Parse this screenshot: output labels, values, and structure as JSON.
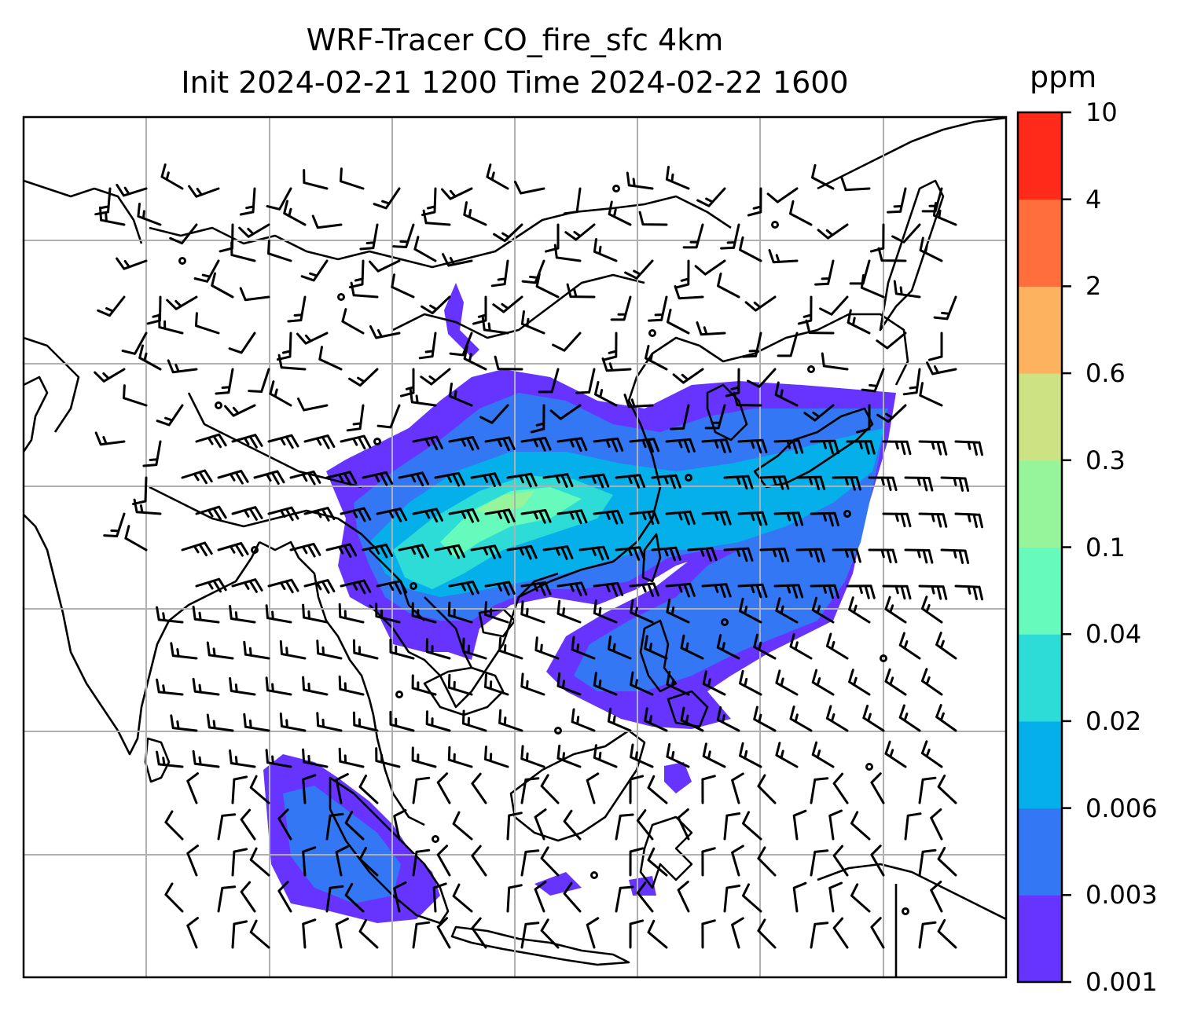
{
  "title": {
    "line1": "WRF-Tracer CO_fire_sfc 4km",
    "line2": "Init 2024-02-21 1200 Time 2024-02-22 1600"
  },
  "colorbar": {
    "unit": "ppm",
    "levels": [
      "0.001",
      "0.003",
      "0.006",
      "0.02",
      "0.04",
      "0.1",
      "0.3",
      "0.6",
      "2",
      "4",
      "10"
    ],
    "colors": [
      "#6633ff",
      "#3377f5",
      "#05b0ea",
      "#2ddcd6",
      "#66fbbd",
      "#96f59a",
      "#cde383",
      "#fdb25f",
      "#ff6e3b",
      "#ff2a1a"
    ]
  },
  "map": {
    "variable": "CO_fire_sfc",
    "coastline_color": "#000000",
    "gridline_color": "#b0b0b0",
    "barb_color": "#000000"
  }
}
